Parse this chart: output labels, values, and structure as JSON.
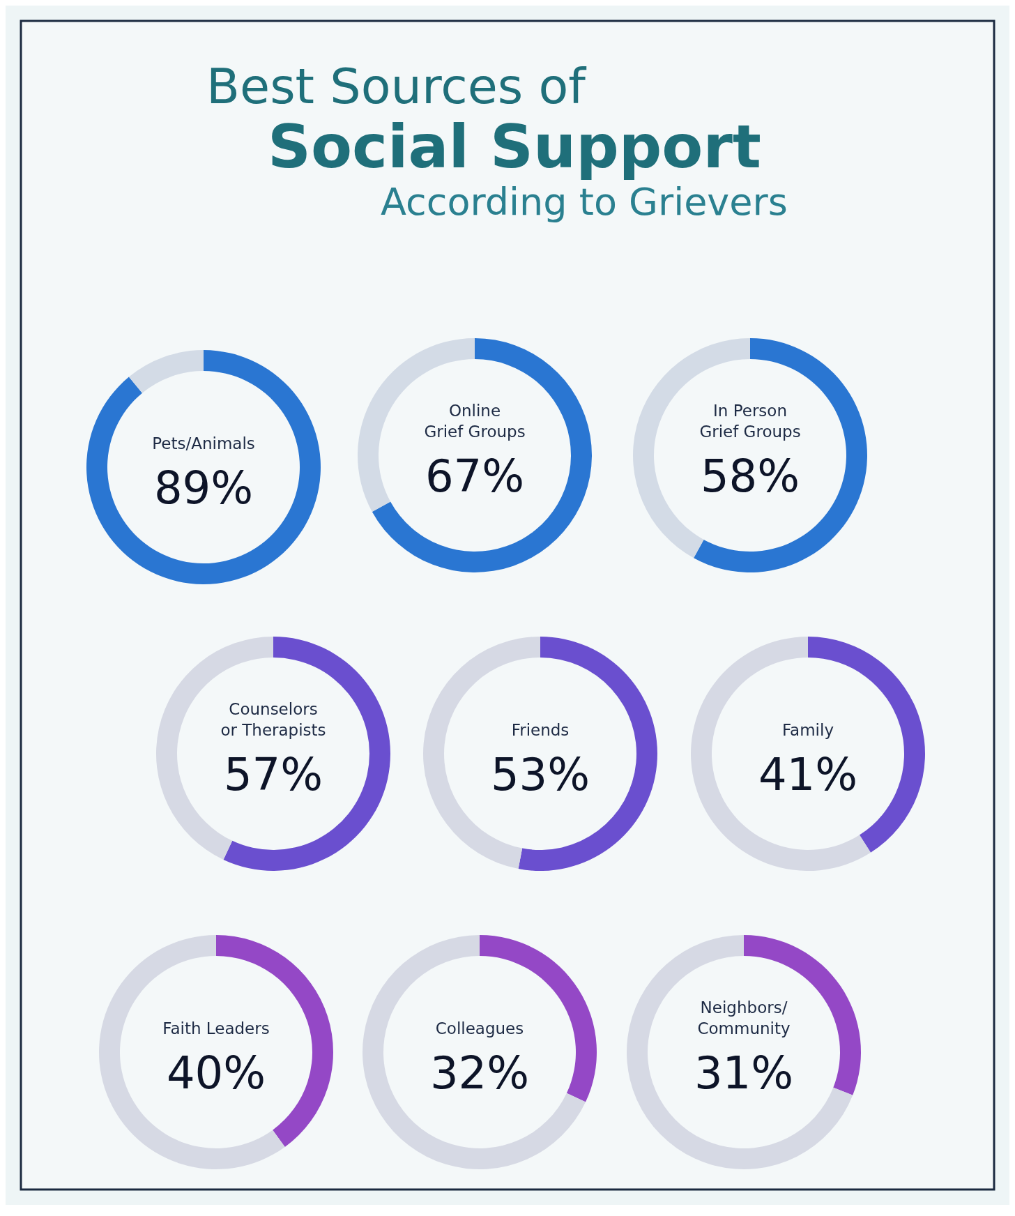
{
  "chart_data": [
    {
      "type": "other",
      "title": "Best Sources of\nSocial Support",
      "subtitle": "According to Grievers"
    },
    {
      "type": "donut",
      "categories": [
        "Pets/Animals",
        null
      ],
      "values": [
        89,
        11
      ],
      "colors": [
        "#2a76d2",
        "#d3dbe6"
      ],
      "value_labels": [
        "89%",
        null
      ]
    },
    {
      "type": "donut",
      "categories": [
        "Online\nGrief Groups",
        null
      ],
      "values": [
        67,
        33
      ],
      "colors": [
        "#2a76d2",
        "#d3dbe6"
      ],
      "value_labels": [
        "67%",
        null
      ]
    },
    {
      "type": "donut",
      "categories": [
        "In Person\nGrief Groups",
        null
      ],
      "values": [
        58,
        42
      ],
      "colors": [
        "#2a76d2",
        "#d3dbe6"
      ],
      "value_labels": [
        "58%",
        null
      ]
    },
    {
      "type": "donut",
      "categories": [
        "Counselors\nor Therapists",
        null
      ],
      "values": [
        57,
        43
      ],
      "colors": [
        "#6a4fcf",
        "#d6d9e4"
      ],
      "value_labels": [
        "57%",
        null
      ]
    },
    {
      "type": "donut",
      "categories": [
        "Friends",
        null
      ],
      "values": [
        53,
        47
      ],
      "colors": [
        "#6a4fcf",
        "#d6d9e4"
      ],
      "value_labels": [
        "53%",
        null
      ]
    },
    {
      "type": "donut",
      "categories": [
        "Family",
        null
      ],
      "values": [
        41,
        59
      ],
      "colors": [
        "#6a4fcf",
        "#d6d9e4"
      ],
      "value_labels": [
        "41%",
        null
      ]
    },
    {
      "type": "donut",
      "categories": [
        "Faith Leaders",
        null
      ],
      "values": [
        40,
        60
      ],
      "colors": [
        "#9448c6",
        "#d6d9e4"
      ],
      "value_labels": [
        "40%",
        null
      ]
    },
    {
      "type": "donut",
      "categories": [
        "Colleagues",
        null
      ],
      "values": [
        32,
        68
      ],
      "colors": [
        "#9448c6",
        "#d6d9e4"
      ],
      "value_labels": [
        "32%",
        null
      ]
    },
    {
      "type": "donut",
      "categories": [
        "Neighbors/\nCommunity",
        null
      ],
      "values": [
        31,
        69
      ],
      "colors": [
        "#9448c6",
        "#d6d9e4"
      ],
      "value_labels": [
        "31%",
        null
      ]
    }
  ]
}
